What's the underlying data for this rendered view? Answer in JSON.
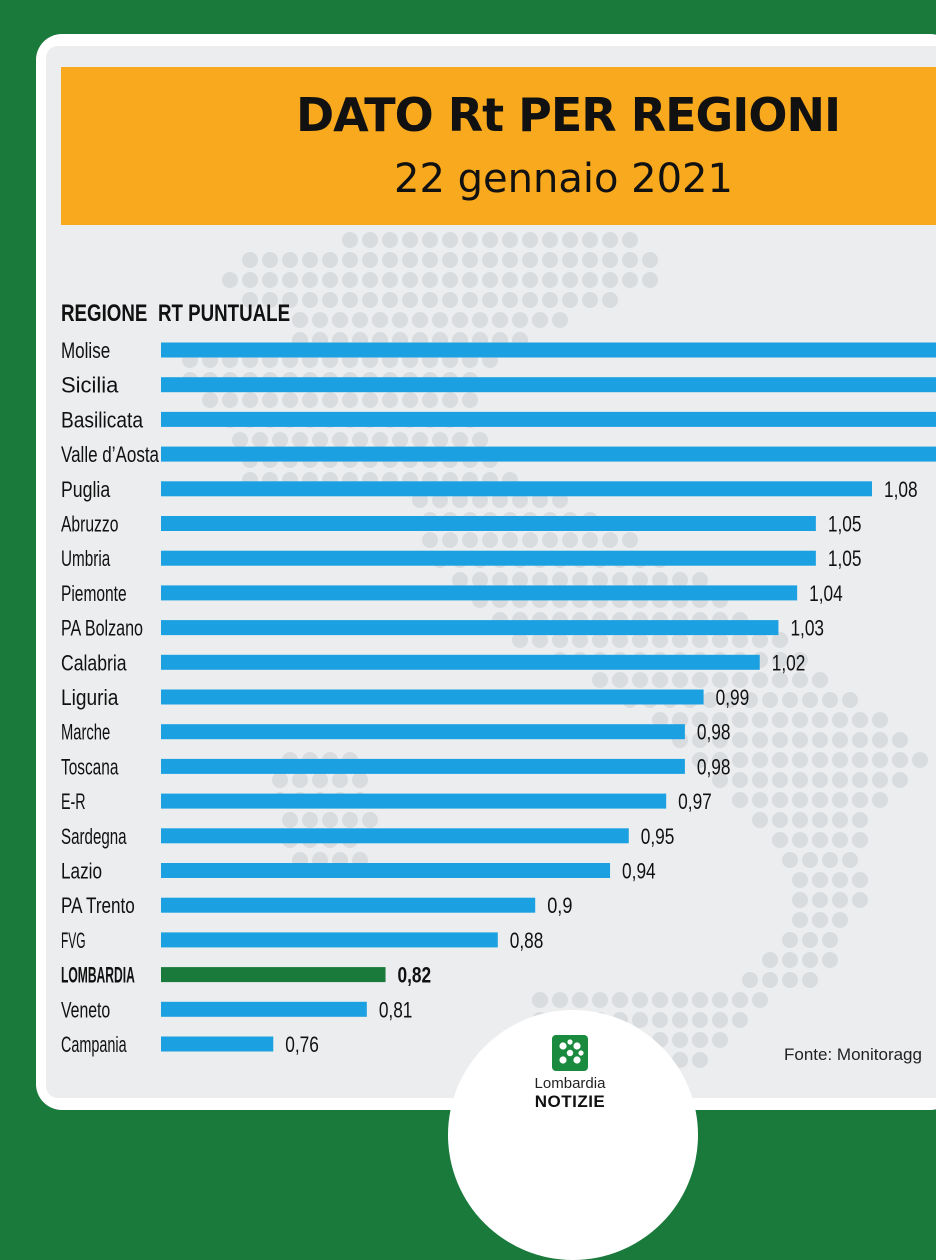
{
  "header": {
    "title": "DATO Rt PER REGIONI",
    "date": "22 gennaio 2021"
  },
  "columns": {
    "region": "REGIONE",
    "rt": "RT PUNTUALE"
  },
  "source": "Fonte: Monitoragg",
  "logo": {
    "line1": "Lombardia",
    "line2": "NOTIZIE",
    "icon": "lombardy-rose-icon"
  },
  "colors": {
    "background_green": "#1a7a3c",
    "header_orange": "#f8a91d",
    "bar_blue": "#1ba1e2",
    "highlight_green": "#1a7a3c",
    "map_dots": "#d9dcdf"
  },
  "chart_data": {
    "type": "bar",
    "orientation": "horizontal",
    "categories": [
      "Molise",
      "Sicilia",
      "Basilicata",
      "Valle d’Aosta",
      "Puglia",
      "Abruzzo",
      "Umbria",
      "Piemonte",
      "PA Bolzano",
      "Calabria",
      "Liguria",
      "Marche",
      "Toscana",
      "E-R",
      "Sardegna",
      "Lazio",
      "PA Trento",
      "FVG",
      "LOMBARDIA",
      "Veneto",
      "Campania"
    ],
    "values": [
      null,
      null,
      null,
      null,
      1.08,
      1.05,
      1.05,
      1.04,
      1.03,
      1.02,
      0.99,
      0.98,
      0.98,
      0.97,
      0.95,
      0.94,
      0.9,
      0.88,
      0.82,
      0.81,
      0.76
    ],
    "labels": [
      "",
      "",
      "",
      "",
      "1,08",
      "1,05",
      "1,05",
      "1,04",
      "1,03",
      "1,02",
      "0,99",
      "0,98",
      "0,98",
      "0,97",
      "0,95",
      "0,94",
      "0,9",
      "0,88",
      "0,82",
      "0,81",
      "0,76"
    ],
    "clipped": [
      true,
      true,
      true,
      true,
      false,
      false,
      false,
      false,
      false,
      false,
      false,
      false,
      false,
      false,
      false,
      false,
      false,
      false,
      false,
      false,
      false
    ],
    "highlight": "LOMBARDIA"
  }
}
